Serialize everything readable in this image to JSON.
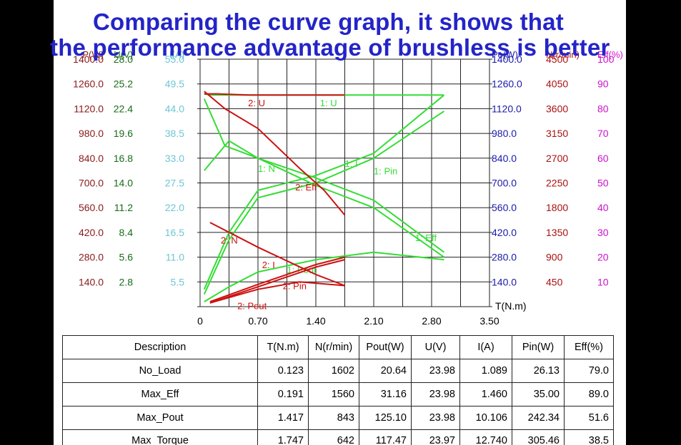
{
  "title": {
    "line1": "Comparing the curve graph, it shows that",
    "line2": "the performance advantage of brushless is better"
  },
  "colors": {
    "title": "#2424c8",
    "motor1": "#33dd33",
    "motor2": "#cc1111"
  },
  "chart_data": {
    "type": "line",
    "xlabel": "T(N.m)",
    "xlim": [
      0,
      3.5
    ],
    "x_ticks": [
      "0",
      "0.70",
      "1.40",
      "2.10",
      "2.80",
      "3.50"
    ],
    "left_axes": [
      {
        "title": "P(W)",
        "color": "#8b1a1a",
        "ticks": [
          "1400.0",
          "1260.0",
          "1120.0",
          "980.0",
          "840.0",
          "700.0",
          "560.0",
          "420.0",
          "280.0",
          "140.0"
        ]
      },
      {
        "title": "U(V)",
        "color": "#1a6b1a",
        "ticks": [
          "28.0",
          "25.2",
          "22.4",
          "19.6",
          "16.8",
          "14.0",
          "11.2",
          "8.4",
          "5.6",
          "2.8"
        ]
      },
      {
        "title": "I(A)",
        "color": "#55bbcc",
        "ticks": [
          "55.0",
          "49.5",
          "44.0",
          "38.5",
          "33.0",
          "27.5",
          "22.0",
          "16.5",
          "11.0",
          "5.5"
        ]
      }
    ],
    "right_axes": [
      {
        "title": "Po(W)",
        "color": "#1a1aaa",
        "ticks": [
          "1400.0",
          "1260.0",
          "1120.0",
          "980.0",
          "840.0",
          "700.0",
          "560.0",
          "420.0",
          "280.0",
          "140.0"
        ]
      },
      {
        "title": "N(r/min)",
        "color": "#aa1111",
        "ticks": [
          "4500",
          "4050",
          "3600",
          "3150",
          "2700",
          "2250",
          "1800",
          "1350",
          "900",
          "450"
        ]
      },
      {
        "title": "Eff(%)",
        "color": "#cc11cc",
        "ticks": [
          "100",
          "90",
          "80",
          "70",
          "60",
          "50",
          "40",
          "30",
          "20",
          "10"
        ]
      }
    ],
    "series": [
      {
        "name": "1: U",
        "color": "#33dd33",
        "label_x": 1.45,
        "label_y_frac": 0.81,
        "points": [
          [
            0.05,
            0.86
          ],
          [
            0.12,
            0.855
          ],
          [
            0.5,
            0.855
          ],
          [
            1.5,
            0.855
          ],
          [
            2.95,
            0.855
          ]
        ]
      },
      {
        "name": "1: N",
        "color": "#33dd33",
        "label_x": 0.7,
        "label_y_frac": 0.545,
        "points": [
          [
            0.05,
            0.84
          ],
          [
            0.3,
            0.65
          ],
          [
            0.7,
            0.6
          ],
          [
            1.4,
            0.52
          ],
          [
            2.1,
            0.43
          ],
          [
            2.95,
            0.22
          ]
        ]
      },
      {
        "name": "1: I",
        "color": "#33dd33",
        "label_x": 1.75,
        "label_y_frac": 0.565,
        "points": [
          [
            0.05,
            0.07
          ],
          [
            0.35,
            0.3
          ],
          [
            0.7,
            0.47
          ],
          [
            1.4,
            0.53
          ],
          [
            2.1,
            0.62
          ],
          [
            2.95,
            0.855
          ]
        ]
      },
      {
        "name": "1: Pin",
        "color": "#33dd33",
        "label_x": 2.1,
        "label_y_frac": 0.535,
        "points": [
          [
            0.05,
            0.05
          ],
          [
            0.35,
            0.27
          ],
          [
            0.7,
            0.44
          ],
          [
            1.4,
            0.5
          ],
          [
            2.1,
            0.6
          ],
          [
            2.95,
            0.79
          ]
        ]
      },
      {
        "name": "1: Eff",
        "color": "#33dd33",
        "label_x": 2.6,
        "label_y_frac": 0.265,
        "points": [
          [
            0.05,
            0.55
          ],
          [
            0.35,
            0.67
          ],
          [
            0.7,
            0.6
          ],
          [
            1.4,
            0.49
          ],
          [
            2.1,
            0.4
          ],
          [
            2.95,
            0.2
          ]
        ]
      },
      {
        "name": "1: Pout",
        "color": "#33dd33",
        "label_x": 1.05,
        "label_y_frac": 0.135,
        "points": [
          [
            0.05,
            0.02
          ],
          [
            0.35,
            0.08
          ],
          [
            0.7,
            0.14
          ],
          [
            1.4,
            0.19
          ],
          [
            2.1,
            0.22
          ],
          [
            2.95,
            0.19
          ]
        ]
      },
      {
        "name": "2: U",
        "color": "#cc1111",
        "label_x": 0.58,
        "label_y_frac": 0.81,
        "points": [
          [
            0.05,
            0.86
          ],
          [
            0.2,
            0.86
          ],
          [
            0.6,
            0.855
          ],
          [
            1.2,
            0.855
          ],
          [
            1.75,
            0.855
          ]
        ]
      },
      {
        "name": "2: N",
        "color": "#cc1111",
        "label_x": 0.25,
        "label_y_frac": 0.255,
        "points": [
          [
            0.12,
            0.34
          ],
          [
            0.7,
            0.24
          ],
          [
            1.4,
            0.13
          ],
          [
            1.75,
            0.085
          ]
        ]
      },
      {
        "name": "2: I",
        "color": "#cc1111",
        "label_x": 0.75,
        "label_y_frac": 0.155,
        "points": [
          [
            0.12,
            0.02
          ],
          [
            0.7,
            0.09
          ],
          [
            1.4,
            0.17
          ],
          [
            1.75,
            0.2
          ]
        ]
      },
      {
        "name": "2: Pin",
        "color": "#cc1111",
        "label_x": 1.0,
        "label_y_frac": 0.07,
        "points": [
          [
            0.12,
            0.015
          ],
          [
            0.7,
            0.08
          ],
          [
            1.4,
            0.16
          ],
          [
            1.75,
            0.19
          ]
        ]
      },
      {
        "name": "2: Eff",
        "color": "#cc1111",
        "label_x": 1.15,
        "label_y_frac": 0.47,
        "points": [
          [
            0.05,
            0.87
          ],
          [
            0.3,
            0.8
          ],
          [
            0.7,
            0.72
          ],
          [
            1.2,
            0.56
          ],
          [
            1.5,
            0.47
          ],
          [
            1.75,
            0.37
          ]
        ]
      },
      {
        "name": "2: Pout",
        "color": "#cc1111",
        "label_x": 0.45,
        "label_y_frac": -0.01,
        "points": [
          [
            0.12,
            0.015
          ],
          [
            0.7,
            0.07
          ],
          [
            1.2,
            0.1
          ],
          [
            1.75,
            0.085
          ]
        ]
      }
    ]
  },
  "table": {
    "headers": [
      "Description",
      "T(N.m)",
      "N(r/min)",
      "Pout(W)",
      "U(V)",
      "I(A)",
      "Pin(W)",
      "Eff(%)"
    ],
    "rows": [
      [
        "No_Load",
        "0.123",
        "1602",
        "20.64",
        "23.98",
        "1.089",
        "26.13",
        "79.0"
      ],
      [
        "Max_Eff",
        "0.191",
        "1560",
        "31.16",
        "23.98",
        "1.460",
        "35.00",
        "89.0"
      ],
      [
        "Max_Pout",
        "1.417",
        "843",
        "125.10",
        "23.98",
        "10.106",
        "242.34",
        "51.6"
      ],
      [
        "Max_Torque",
        "1.747",
        "642",
        "117.47",
        "23.97",
        "12.740",
        "305.46",
        "38.5"
      ]
    ]
  }
}
